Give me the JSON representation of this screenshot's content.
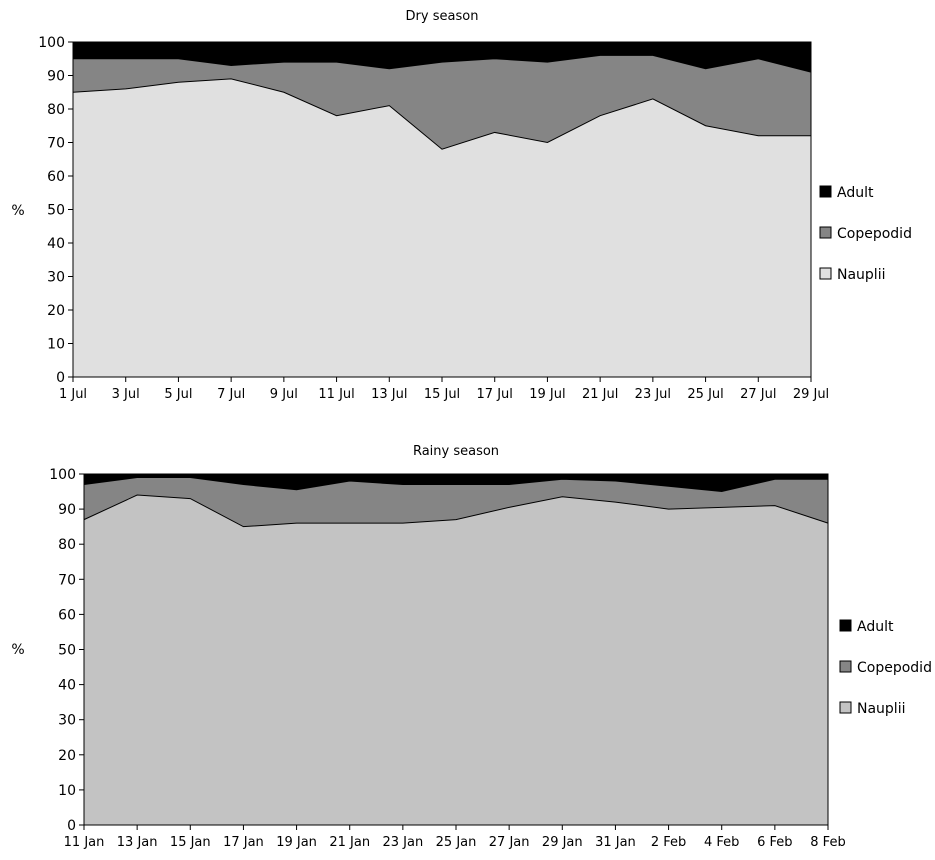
{
  "chart_data": [
    {
      "type": "area",
      "stacked": true,
      "title": "Dry season",
      "xlabel": "",
      "ylabel": "%",
      "ylim": [
        0,
        100
      ],
      "yticks": [
        0,
        10,
        20,
        30,
        40,
        50,
        60,
        70,
        80,
        90,
        100
      ],
      "grid": false,
      "legend_position": "right",
      "categories": [
        "1 Jul",
        "3 Jul",
        "5 Jul",
        "7 Jul",
        "9 Jul",
        "11 Jul",
        "13 Jul",
        "15 Jul",
        "17 Jul",
        "19 Jul",
        "21 Jul",
        "23 Jul",
        "25 Jul",
        "27 Jul",
        "29 Jul"
      ],
      "series": [
        {
          "name": "Nauplii",
          "color": "#e0e0e0",
          "values": [
            85,
            86,
            88,
            89,
            85,
            78,
            81,
            68,
            73,
            70,
            78,
            83,
            75,
            72,
            72
          ]
        },
        {
          "name": "Copepodid",
          "color": "#858585",
          "values": [
            10,
            9,
            7,
            4,
            9,
            16,
            11,
            26,
            22,
            24,
            18,
            13,
            17,
            23,
            19
          ]
        },
        {
          "name": "Adult",
          "color": "#000000",
          "values": [
            5,
            5,
            5,
            7,
            6,
            6,
            8,
            6,
            5,
            6,
            4,
            4,
            8,
            5,
            9
          ]
        }
      ],
      "legend_order": [
        "Adult",
        "Copepodid",
        "Nauplii"
      ]
    },
    {
      "type": "area",
      "stacked": true,
      "title": "Rainy season",
      "xlabel": "",
      "ylabel": "%",
      "ylim": [
        0,
        100
      ],
      "yticks": [
        0,
        10,
        20,
        30,
        40,
        50,
        60,
        70,
        80,
        90,
        100
      ],
      "grid": false,
      "legend_position": "right",
      "categories": [
        "11 Jan",
        "13 Jan",
        "15 Jan",
        "17 Jan",
        "19 Jan",
        "21 Jan",
        "23 Jan",
        "25 Jan",
        "27 Jan",
        "29 Jan",
        "31 Jan",
        "2 Feb",
        "4 Feb",
        "6 Feb",
        "8 Feb"
      ],
      "series": [
        {
          "name": "Nauplii",
          "color": "#c3c3c3",
          "values": [
            87,
            94,
            93,
            85,
            86,
            86,
            86,
            87,
            90.5,
            93.5,
            92,
            90,
            90.5,
            91,
            86
          ]
        },
        {
          "name": "Copepodid",
          "color": "#858585",
          "values": [
            10,
            5,
            6,
            12,
            9.5,
            12,
            11,
            10,
            6.5,
            5,
            6,
            6.5,
            4.5,
            7.5,
            12.5
          ]
        },
        {
          "name": "Adult",
          "color": "#000000",
          "values": [
            3,
            1,
            1,
            3,
            4.5,
            2,
            3,
            3,
            3,
            1.5,
            2,
            3.5,
            5,
            1.5,
            1.5
          ]
        }
      ],
      "legend_order": [
        "Adult",
        "Copepodid",
        "Nauplii"
      ]
    }
  ]
}
